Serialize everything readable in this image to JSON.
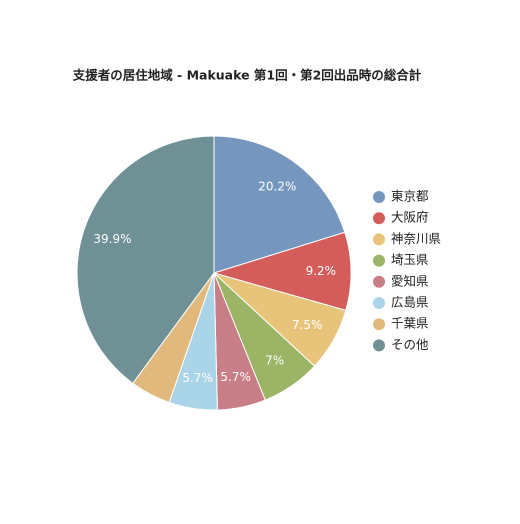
{
  "chart_data": {
    "type": "pie",
    "title": "支援者の居住地域 - Makuake 第1回・第2回出品時の総合計",
    "categories": [
      "東京都",
      "大阪府",
      "神奈川県",
      "埼玉県",
      "愛知県",
      "広島県",
      "千葉県",
      "その他"
    ],
    "values": [
      20.2,
      9.2,
      7.5,
      7,
      5.7,
      5.7,
      4.8,
      39.9
    ],
    "value_labels": [
      "20.2%",
      "9.2%",
      "7.5%",
      "7%",
      "5.7%",
      "5.7%",
      null,
      "39.9%"
    ],
    "colors": [
      "#7596bd",
      "#d45d5b",
      "#e8c47b",
      "#9bb465",
      "#c87e87",
      "#aad4e8",
      "#e1b97d",
      "#6f9196"
    ],
    "legend": "right"
  }
}
